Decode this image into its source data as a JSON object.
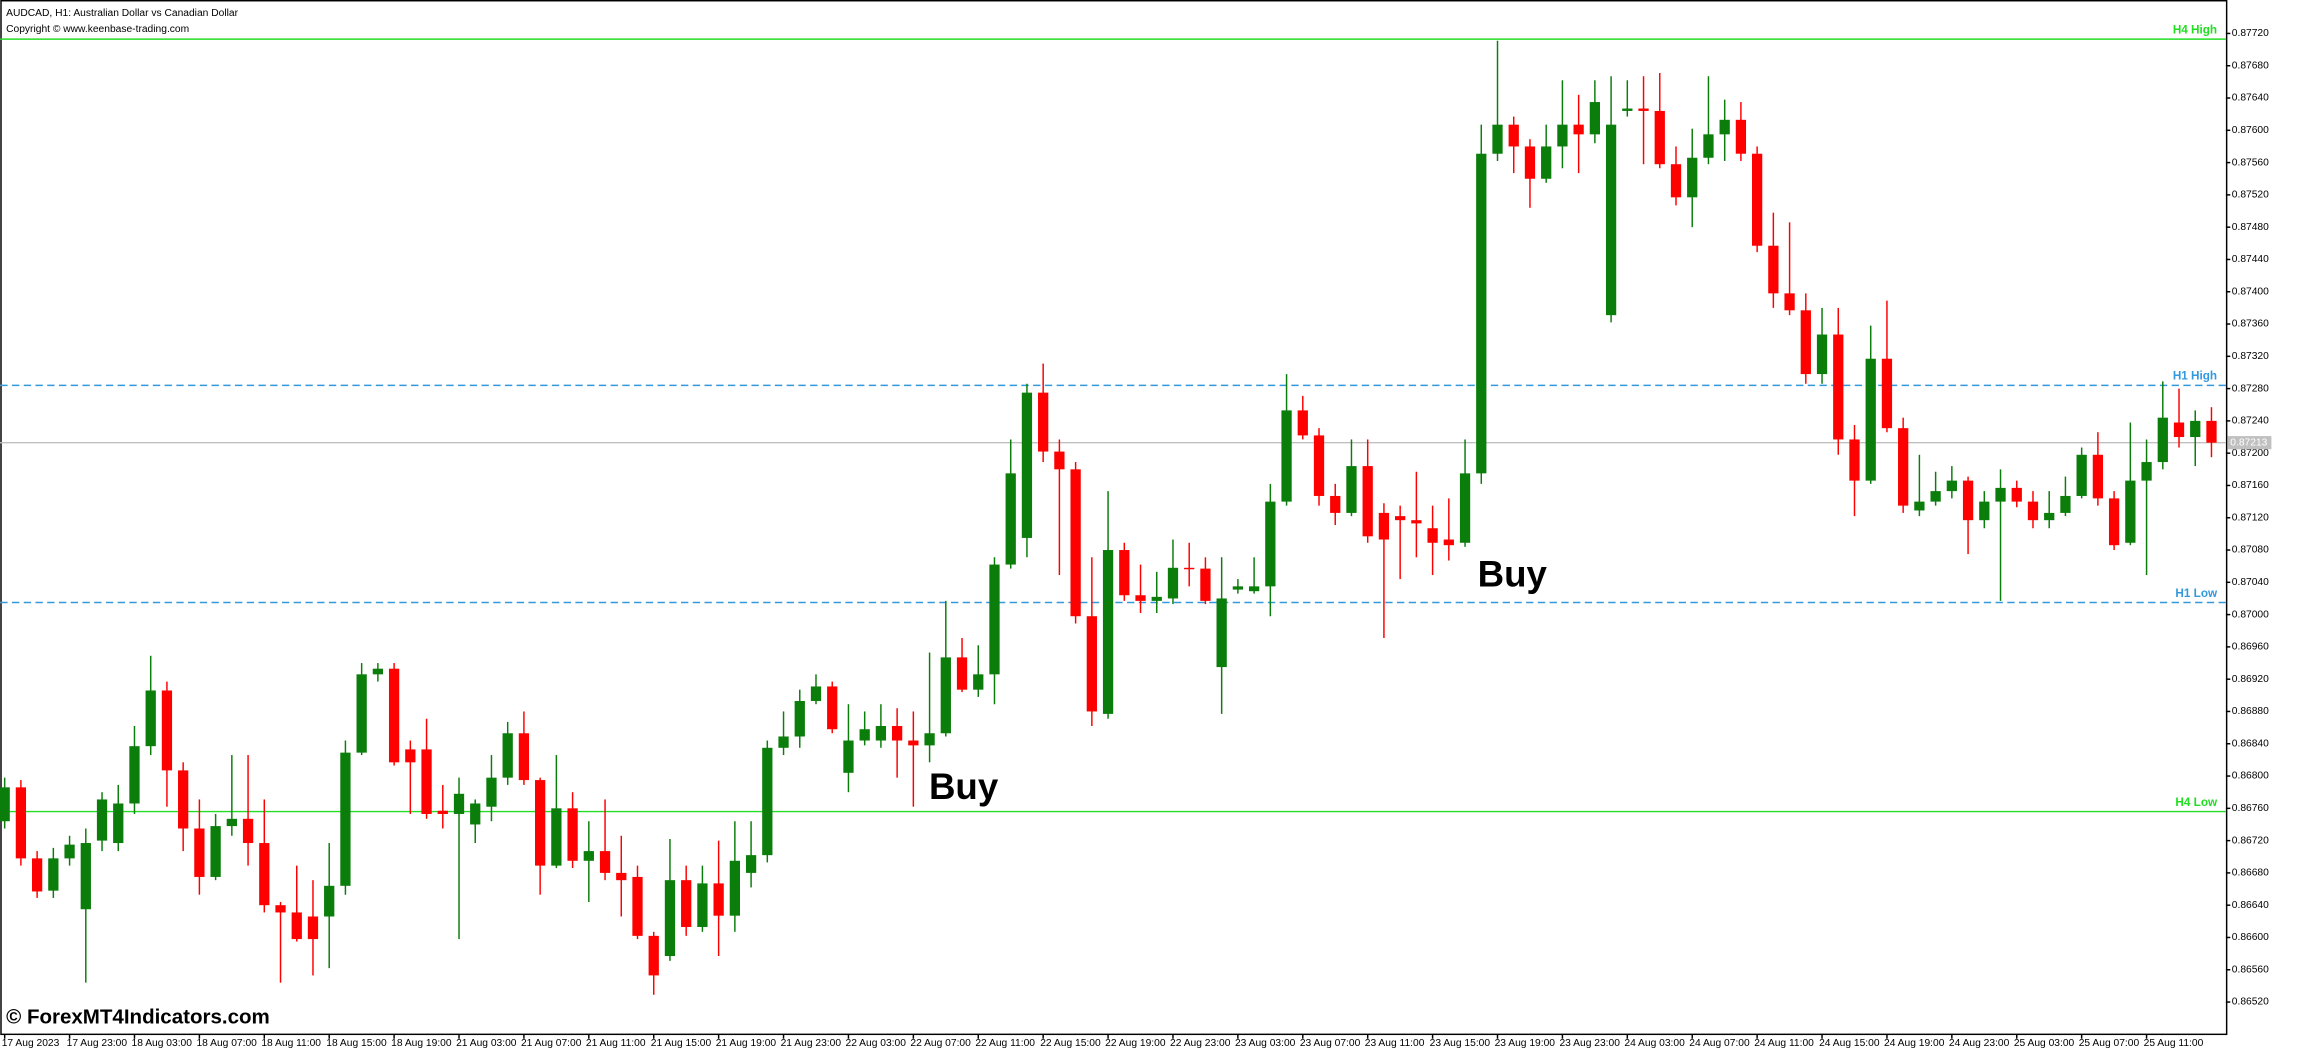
{
  "chart_data": {
    "type": "candlestick",
    "title": "AUDCAD, H1:  Australian Dollar vs Canadian Dollar",
    "subtitle": "Copyright © www.keenbase-trading.com",
    "watermark": "© ForexMT4Indicators.com",
    "categories": [
      "17 Aug 2023",
      null,
      null,
      null,
      "17 Aug 23:00",
      null,
      null,
      null,
      "18 Aug 03:00",
      null,
      null,
      null,
      "18 Aug 07:00",
      null,
      null,
      null,
      "18 Aug 11:00",
      null,
      null,
      null,
      "18 Aug 15:00",
      null,
      null,
      null,
      "18 Aug 19:00",
      null,
      null,
      null,
      "21 Aug 03:00",
      null,
      null,
      null,
      "21 Aug 07:00",
      null,
      null,
      null,
      "21 Aug 11:00",
      null,
      null,
      null,
      "21 Aug 15:00",
      null,
      null,
      null,
      "21 Aug 19:00",
      null,
      null,
      null,
      "21 Aug 23:00",
      null,
      null,
      null,
      "22 Aug 03:00",
      null,
      null,
      null,
      "22 Aug 07:00",
      null,
      null,
      null,
      "22 Aug 11:00",
      null,
      null,
      null,
      "22 Aug 15:00",
      null,
      null,
      null,
      "22 Aug 19:00",
      null,
      null,
      null,
      "22 Aug 23:00",
      null,
      null,
      null,
      "23 Aug 03:00",
      null,
      null,
      null,
      "23 Aug 07:00",
      null,
      null,
      null,
      "23 Aug 11:00",
      null,
      null,
      null,
      "23 Aug 15:00",
      null,
      null,
      null,
      "23 Aug 19:00",
      null,
      null,
      null,
      "23 Aug 23:00",
      null,
      null,
      null,
      "24 Aug 03:00",
      null,
      null,
      null,
      "24 Aug 07:00",
      null,
      null,
      null,
      "24 Aug 11:00",
      null,
      null,
      null,
      "24 Aug 15:00",
      null,
      null,
      null,
      "24 Aug 19:00",
      null,
      null,
      null,
      "24 Aug 23:00",
      null,
      null,
      null,
      "25 Aug 03:00",
      null,
      null,
      null,
      "25 Aug 07:00",
      null,
      null,
      null,
      "25 Aug 11:00",
      null,
      null,
      null,
      null
    ],
    "open": [
      0.86744,
      0.86786,
      0.86698,
      0.86658,
      0.86698,
      0.86635,
      0.8672,
      0.86717,
      0.86766,
      0.86837,
      0.86906,
      0.86807,
      0.86735,
      0.86675,
      0.86738,
      0.86747,
      0.86717,
      0.8664,
      0.86631,
      0.86626,
      0.86626,
      0.86664,
      0.86829,
      0.86926,
      0.86933,
      0.86833,
      0.86833,
      0.86757,
      0.86753,
      0.8674,
      0.86762,
      0.86798,
      0.86853,
      0.86795,
      0.86689,
      0.8676,
      0.86695,
      0.86707,
      0.8668,
      0.86675,
      0.86602,
      0.86577,
      0.86671,
      0.86613,
      0.86667,
      0.86627,
      0.8668,
      0.86702,
      0.86835,
      0.86849,
      0.86893,
      0.86911,
      0.86804,
      0.86844,
      0.86844,
      0.86862,
      0.86844,
      0.86838,
      0.86853,
      0.86947,
      0.86907,
      0.86926,
      0.87062,
      0.87095,
      0.87275,
      0.87202,
      0.8718,
      0.86998,
      0.86877,
      0.8708,
      0.87024,
      0.87017,
      0.8702,
      0.87058,
      0.87057,
      0.86935,
      0.87031,
      0.87029,
      0.87035,
      0.8714,
      0.87253,
      0.87222,
      0.87147,
      0.87126,
      0.87184,
      0.87126,
      0.87122,
      0.87117,
      0.87107,
      0.87093,
      0.87089,
      0.87175,
      0.87571,
      0.87607,
      0.8758,
      0.8754,
      0.8758,
      0.87607,
      0.87595,
      0.87371,
      0.87624,
      0.87627,
      0.87624,
      0.87558,
      0.87517,
      0.87566,
      0.87595,
      0.87613,
      0.87571,
      0.87457,
      0.87398,
      0.87377,
      0.87298,
      0.87347,
      0.87217,
      0.87166,
      0.87317,
      0.87231,
      0.87129,
      0.8714,
      0.87153,
      0.87166,
      0.87117,
      0.8714,
      0.87157,
      0.8714,
      0.87117,
      0.87126,
      0.87147,
      0.87198,
      0.87144,
      0.87089,
      0.87166,
      0.87189,
      0.87238,
      0.8722,
      0.8724
    ],
    "high": [
      0.86798,
      0.86795,
      0.86707,
      0.86711,
      0.86726,
      0.86735,
      0.8678,
      0.86789,
      0.86862,
      0.86949,
      0.86917,
      0.86817,
      0.86771,
      0.86753,
      0.86826,
      0.86826,
      0.86771,
      0.86644,
      0.86689,
      0.86671,
      0.86717,
      0.86844,
      0.8694,
      0.8694,
      0.8694,
      0.86844,
      0.86871,
      0.86789,
      0.86798,
      0.86771,
      0.86826,
      0.86867,
      0.8688,
      0.86798,
      0.86826,
      0.8678,
      0.86744,
      0.86771,
      0.86726,
      0.86689,
      0.86607,
      0.86722,
      0.86689,
      0.86689,
      0.8672,
      0.86744,
      0.86744,
      0.86844,
      0.8688,
      0.86907,
      0.86926,
      0.86917,
      0.86889,
      0.8688,
      0.86889,
      0.86884,
      0.8688,
      0.86953,
      0.87017,
      0.86971,
      0.86962,
      0.87071,
      0.87217,
      0.87286,
      0.87311,
      0.87217,
      0.87189,
      0.87071,
      0.87153,
      0.87089,
      0.87062,
      0.87053,
      0.87093,
      0.87089,
      0.87071,
      0.87071,
      0.87044,
      0.87071,
      0.87162,
      0.87298,
      0.87271,
      0.87231,
      0.87162,
      0.87217,
      0.87217,
      0.87138,
      0.87135,
      0.87177,
      0.87135,
      0.87144,
      0.87217,
      0.87607,
      0.87711,
      0.87617,
      0.87589,
      0.87607,
      0.87662,
      0.87644,
      0.87662,
      0.87667,
      0.87662,
      0.87667,
      0.87671,
      0.8758,
      0.87602,
      0.87667,
      0.87638,
      0.87635,
      0.8758,
      0.87498,
      0.87486,
      0.87398,
      0.8738,
      0.8738,
      0.87235,
      0.87358,
      0.87389,
      0.87244,
      0.87198,
      0.87177,
      0.87184,
      0.87171,
      0.87153,
      0.8718,
      0.87166,
      0.87153,
      0.87153,
      0.87171,
      0.87207,
      0.87226,
      0.87153,
      0.87238,
      0.87217,
      0.87289,
      0.8728,
      0.87253,
      0.87257
    ],
    "low": [
      0.86735,
      0.86689,
      0.86649,
      0.86649,
      0.86689,
      0.86544,
      0.86707,
      0.86707,
      0.86753,
      0.86826,
      0.86762,
      0.86707,
      0.86653,
      0.86671,
      0.86726,
      0.86689,
      0.86631,
      0.86544,
      0.86595,
      0.86553,
      0.86562,
      0.86653,
      0.86826,
      0.86917,
      0.86813,
      0.86753,
      0.86747,
      0.86735,
      0.86598,
      0.86717,
      0.86744,
      0.86789,
      0.86789,
      0.86653,
      0.86686,
      0.86686,
      0.86644,
      0.86671,
      0.86626,
      0.86598,
      0.86529,
      0.86571,
      0.86602,
      0.86607,
      0.86577,
      0.86607,
      0.86662,
      0.86693,
      0.86826,
      0.86835,
      0.86889,
      0.86853,
      0.8678,
      0.86838,
      0.86835,
      0.86798,
      0.86762,
      0.86817,
      0.86849,
      0.86904,
      0.86898,
      0.86889,
      0.87057,
      0.87071,
      0.87189,
      0.87049,
      0.86989,
      0.86862,
      0.86871,
      0.87017,
      0.87002,
      0.87002,
      0.87013,
      0.87035,
      0.87013,
      0.86877,
      0.87026,
      0.87026,
      0.86998,
      0.87135,
      0.87217,
      0.87135,
      0.87111,
      0.87122,
      0.87089,
      0.86971,
      0.87044,
      0.87071,
      0.87049,
      0.87067,
      0.87084,
      0.87162,
      0.87562,
      0.87547,
      0.87504,
      0.87535,
      0.87553,
      0.87547,
      0.87584,
      0.87362,
      0.87617,
      0.87558,
      0.87553,
      0.87507,
      0.8748,
      0.87558,
      0.87562,
      0.87562,
      0.87449,
      0.8738,
      0.87371,
      0.87286,
      0.87286,
      0.87198,
      0.87122,
      0.87162,
      0.87226,
      0.87126,
      0.87122,
      0.87135,
      0.87144,
      0.87075,
      0.87107,
      0.87017,
      0.87133,
      0.87107,
      0.87107,
      0.87122,
      0.87144,
      0.87135,
      0.8708,
      0.87086,
      0.87049,
      0.8718,
      0.87207,
      0.87184,
      0.87195
    ],
    "close": [
      0.86786,
      0.86698,
      0.86657,
      0.86698,
      0.86715,
      0.86717,
      0.86771,
      0.86766,
      0.86837,
      0.86906,
      0.86807,
      0.86735,
      0.86675,
      0.86738,
      0.86747,
      0.86717,
      0.8664,
      0.86631,
      0.86598,
      0.86598,
      0.86664,
      0.86829,
      0.86926,
      0.86933,
      0.86817,
      0.86817,
      0.86753,
      0.86753,
      0.86778,
      0.86766,
      0.86798,
      0.86853,
      0.86795,
      0.86689,
      0.8676,
      0.86695,
      0.86707,
      0.8668,
      0.86671,
      0.86602,
      0.86553,
      0.86671,
      0.86613,
      0.86667,
      0.86627,
      0.86695,
      0.86702,
      0.86835,
      0.86849,
      0.86893,
      0.86911,
      0.86858,
      0.86844,
      0.86858,
      0.86862,
      0.86844,
      0.86838,
      0.86853,
      0.86947,
      0.86907,
      0.86926,
      0.87062,
      0.87175,
      0.87275,
      0.87202,
      0.8718,
      0.86998,
      0.8688,
      0.8708,
      0.87024,
      0.87017,
      0.87022,
      0.87058,
      0.87057,
      0.87017,
      0.8702,
      0.87035,
      0.87035,
      0.8714,
      0.87253,
      0.87222,
      0.87147,
      0.87126,
      0.87184,
      0.87097,
      0.87093,
      0.87117,
      0.87113,
      0.87089,
      0.87086,
      0.87175,
      0.87571,
      0.87607,
      0.8758,
      0.8754,
      0.8758,
      0.87607,
      0.87595,
      0.87635,
      0.87607,
      0.87627,
      0.87624,
      0.87558,
      0.87517,
      0.87566,
      0.87595,
      0.87613,
      0.87571,
      0.87457,
      0.87398,
      0.87377,
      0.87298,
      0.87347,
      0.87217,
      0.87166,
      0.87317,
      0.87231,
      0.87135,
      0.8714,
      0.87153,
      0.87166,
      0.87117,
      0.8714,
      0.87157,
      0.8714,
      0.87117,
      0.87126,
      0.87147,
      0.87198,
      0.87144,
      0.87086,
      0.87166,
      0.87189,
      0.87244,
      0.8722,
      0.8724,
      0.87213
    ],
    "up_color": "#0a7d0a",
    "down_color": "#ff0000",
    "ylim": [
      0.8648,
      0.87736
    ],
    "yticks": [
      {
        "value": 0.8652,
        "label": "0.86520"
      },
      {
        "value": 0.8656,
        "label": "0.86560"
      },
      {
        "value": 0.866,
        "label": "0.86600"
      },
      {
        "value": 0.8664,
        "label": "0.86640"
      },
      {
        "value": 0.8668,
        "label": "0.86680"
      },
      {
        "value": 0.8672,
        "label": "0.86720"
      },
      {
        "value": 0.8676,
        "label": "0.86760"
      },
      {
        "value": 0.868,
        "label": "0.86800"
      },
      {
        "value": 0.8684,
        "label": "0.86840"
      },
      {
        "value": 0.8688,
        "label": "0.86880"
      },
      {
        "value": 0.8692,
        "label": "0.86920"
      },
      {
        "value": 0.8696,
        "label": "0.86960"
      },
      {
        "value": 0.87,
        "label": "0.87000"
      },
      {
        "value": 0.8704,
        "label": "0.87040"
      },
      {
        "value": 0.8708,
        "label": "0.87080"
      },
      {
        "value": 0.8712,
        "label": "0.87120"
      },
      {
        "value": 0.8716,
        "label": "0.87160"
      },
      {
        "value": 0.872,
        "label": "0.87200"
      },
      {
        "value": 0.8724,
        "label": "0.87240"
      },
      {
        "value": 0.8728,
        "label": "0.87280"
      },
      {
        "value": 0.8732,
        "label": "0.87320"
      },
      {
        "value": 0.8736,
        "label": "0.87360"
      },
      {
        "value": 0.874,
        "label": "0.87400"
      },
      {
        "value": 0.8744,
        "label": "0.87440"
      },
      {
        "value": 0.8748,
        "label": "0.87480"
      },
      {
        "value": 0.8752,
        "label": "0.87520"
      },
      {
        "value": 0.8756,
        "label": "0.87560"
      },
      {
        "value": 0.876,
        "label": "0.87600"
      },
      {
        "value": 0.8764,
        "label": "0.87640"
      },
      {
        "value": 0.8768,
        "label": "0.87680"
      },
      {
        "value": 0.8772,
        "label": "0.87720"
      }
    ],
    "grid": false,
    "levels": [
      {
        "label": "H4 High",
        "value": 0.87713,
        "color": "#22dd22",
        "dashed": false
      },
      {
        "label": "H1 High",
        "value": 0.87284,
        "color": "#3399dd",
        "dashed": true
      },
      {
        "label": "H1 Low",
        "value": 0.87015,
        "color": "#3399dd",
        "dashed": true
      },
      {
        "label": "H4 Low",
        "value": 0.86756,
        "color": "#22dd22",
        "dashed": false
      }
    ],
    "current_price": {
      "value": 0.87213,
      "color": "#c0c0c0"
    },
    "annotations": [
      {
        "text": "Buy"
      },
      {
        "text": "Buy"
      }
    ]
  }
}
